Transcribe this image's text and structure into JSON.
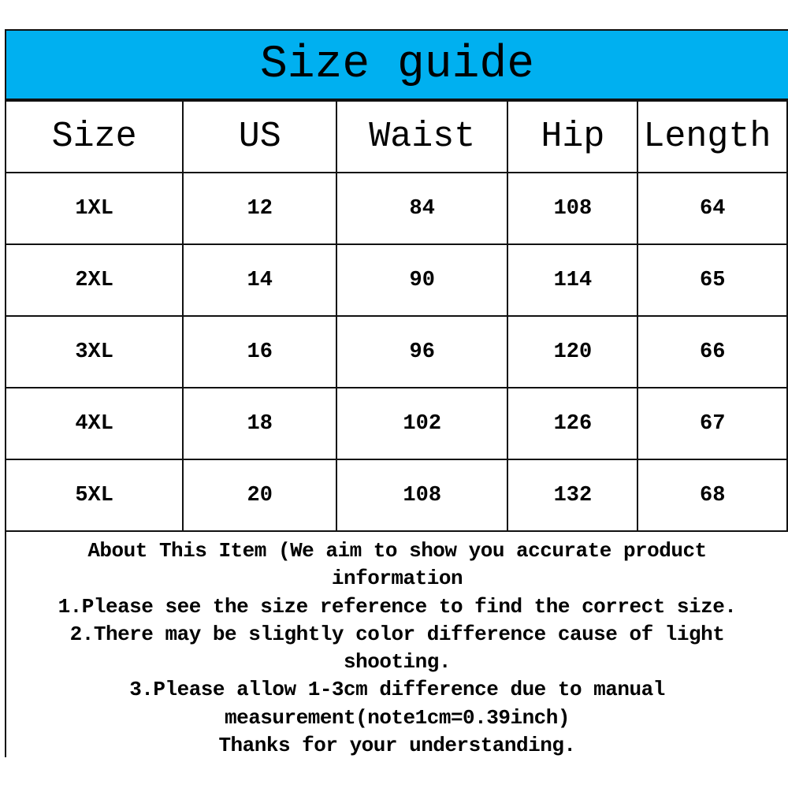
{
  "title": "Size guide",
  "colors": {
    "header_bg": "#00b0f0",
    "border": "#111111"
  },
  "table": {
    "headers": [
      "Size",
      "US",
      "Waist",
      "Hip",
      "Length"
    ],
    "rows": [
      [
        "1XL",
        "12",
        "84",
        "108",
        "64"
      ],
      [
        "2XL",
        "14",
        "90",
        "114",
        "65"
      ],
      [
        "3XL",
        "16",
        "96",
        "120",
        "66"
      ],
      [
        "4XL",
        "18",
        "102",
        "126",
        "67"
      ],
      [
        "5XL",
        "20",
        "108",
        "132",
        "68"
      ]
    ]
  },
  "notes": [
    "About This Item (We aim to show you accurate product",
    "information",
    "1.Please see the size reference to find the correct size.",
    "2.There may be slightly color difference cause of light",
    "shooting.",
    "3.Please allow 1-3cm difference due to manual",
    "measurement(note1cm=0.39inch)",
    "Thanks for your understanding."
  ]
}
